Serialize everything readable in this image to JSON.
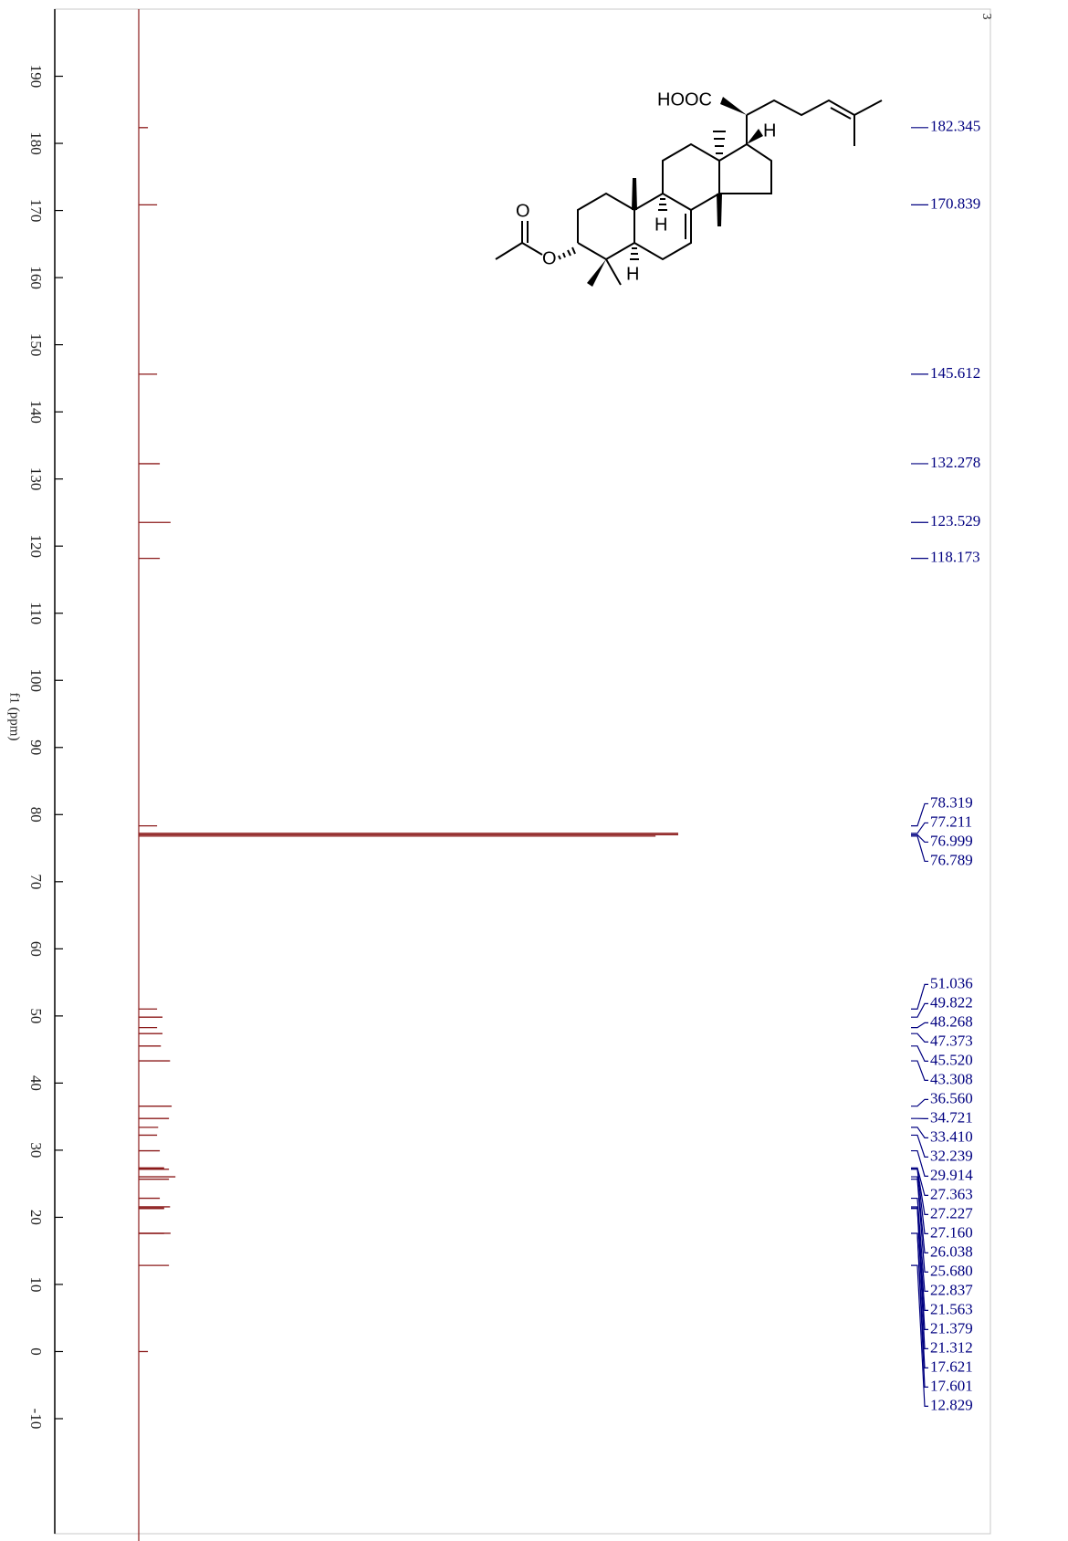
{
  "chart_data": {
    "type": "nmr",
    "xlabel": "f1 (ppm)",
    "xlim": [
      200,
      -27
    ],
    "xticks": [
      190,
      180,
      170,
      160,
      150,
      140,
      130,
      120,
      110,
      100,
      90,
      80,
      70,
      60,
      50,
      40,
      30,
      20,
      10,
      0,
      -10
    ],
    "color": "#8b1a1a",
    "label_color": "#000080",
    "peaks": {
      "ppm": [
        182.345,
        170.839,
        145.612,
        132.278,
        123.529,
        118.173,
        78.319,
        77.211,
        76.999,
        76.789,
        51.036,
        49.822,
        48.268,
        47.373,
        45.52,
        43.308,
        36.56,
        34.721,
        33.41,
        32.239,
        29.914,
        27.363,
        27.227,
        27.16,
        26.038,
        25.68,
        22.837,
        21.563,
        21.379,
        21.312,
        17.621,
        17.601,
        12.829,
        0
      ],
      "intensity": [
        1.7,
        3.4,
        3.4,
        3.9,
        5.9,
        3.9,
        3.4,
        100,
        100,
        95.8,
        3.4,
        4.4,
        3.4,
        4.4,
        4.1,
        5.8,
        6.1,
        5.6,
        3.6,
        3.4,
        3.9,
        4.7,
        4.7,
        5.6,
        6.8,
        5.6,
        3.9,
        5.8,
        4.7,
        4.7,
        5.9,
        4.7,
        5.6,
        1.7
      ],
      "labels": [
        "182.345",
        "170.839",
        "145.612",
        "132.278",
        "123.529",
        "118.173",
        "78.319",
        "77.211",
        "76.999",
        "76.789",
        "51.036",
        "49.822",
        "48.268",
        "47.373",
        "45.520",
        "43.308",
        "36.560",
        "34.721",
        "33.410",
        "32.239",
        "29.914",
        "27.363",
        "27.227",
        "27.160",
        "26.038",
        "25.680",
        "22.837",
        "21.563",
        "21.379",
        "21.312",
        "17.621",
        "17.601",
        "12.829",
        null
      ]
    }
  },
  "structure": {
    "atoms": [
      "HOOC",
      "H",
      "O",
      "O",
      "H",
      "H"
    ]
  },
  "page_number": "3"
}
